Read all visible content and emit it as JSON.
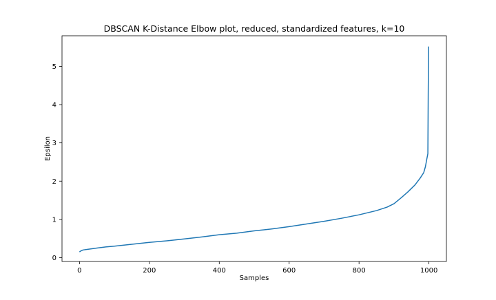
{
  "chart_data": {
    "type": "line",
    "title": "DBSCAN K-Distance Elbow plot, reduced, standardized features, k=10",
    "xlabel": "Samples",
    "ylabel": "Epsilon",
    "xlim": [
      -50,
      1050
    ],
    "ylim": [
      -0.1,
      5.8
    ],
    "xticks": [
      0,
      200,
      400,
      600,
      800,
      1000
    ],
    "yticks": [
      0,
      1,
      2,
      3,
      4,
      5
    ],
    "grid": false,
    "line_color": "#1f77b4",
    "series": [
      {
        "x": [
          0,
          5,
          10,
          25,
          50,
          75,
          100,
          150,
          200,
          250,
          300,
          350,
          400,
          450,
          500,
          550,
          600,
          650,
          700,
          750,
          800,
          850,
          880,
          900,
          920,
          940,
          960,
          975,
          985,
          990,
          994,
          997,
          998,
          999
        ],
        "y": [
          0.15,
          0.18,
          0.2,
          0.22,
          0.25,
          0.28,
          0.3,
          0.35,
          0.4,
          0.44,
          0.49,
          0.54,
          0.6,
          0.64,
          0.7,
          0.75,
          0.81,
          0.88,
          0.95,
          1.03,
          1.12,
          1.23,
          1.32,
          1.41,
          1.56,
          1.72,
          1.9,
          2.08,
          2.22,
          2.38,
          2.58,
          2.72,
          4.3,
          5.52
        ]
      }
    ]
  }
}
